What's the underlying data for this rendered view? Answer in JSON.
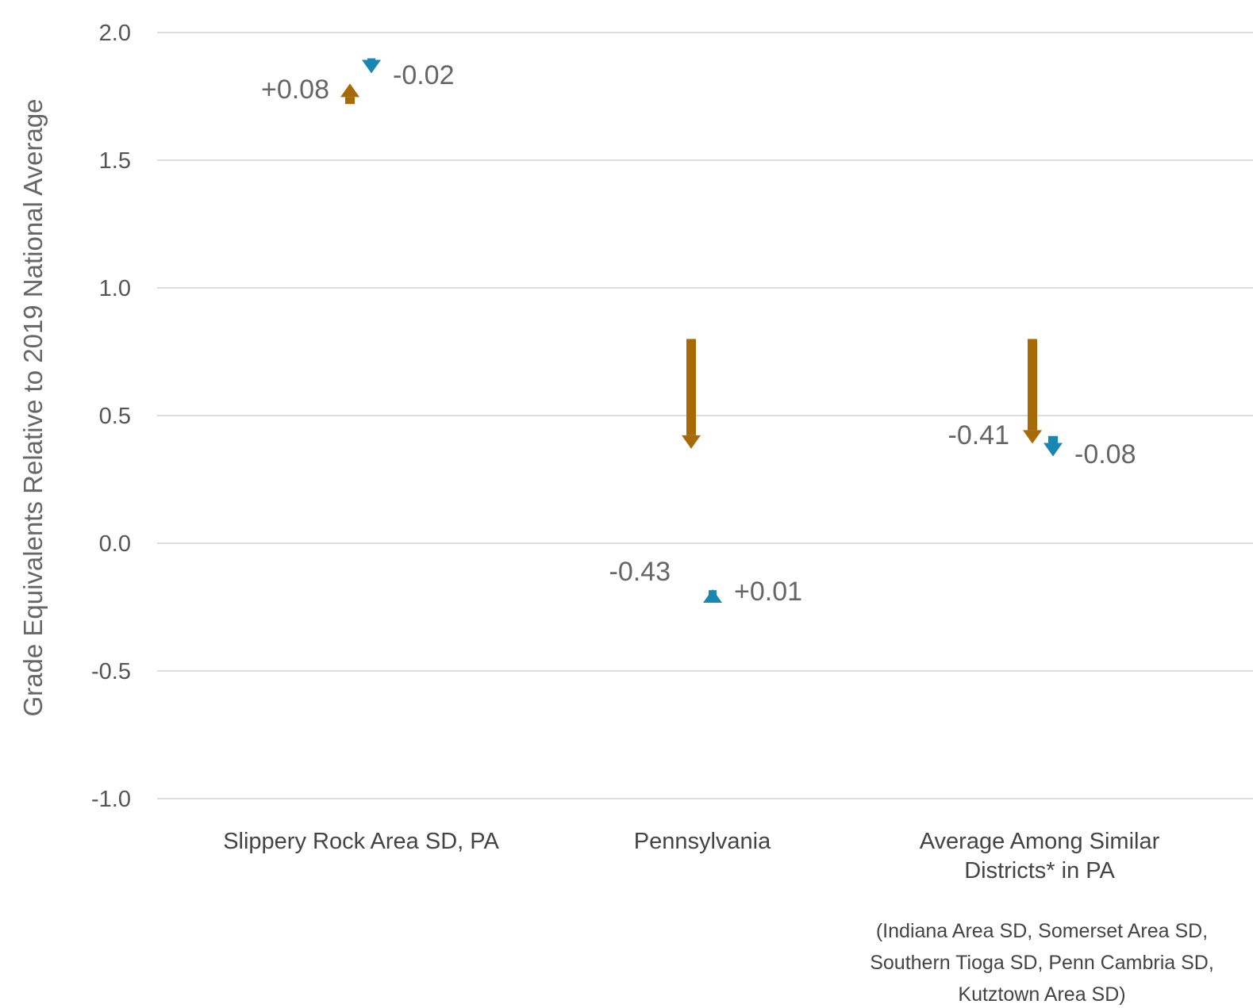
{
  "chart_data": {
    "type": "arrow",
    "ylabel": "Grade Equivalents Relative to 2019 National Average",
    "ylim": [
      -1.0,
      2.0
    ],
    "yticks": [
      2.0,
      1.5,
      1.0,
      0.5,
      0.0,
      -0.5,
      -1.0
    ],
    "ytick_labels": [
      "2.0",
      "1.5",
      "1.0",
      "0.5",
      "0.0",
      "-0.5",
      "-1.0"
    ],
    "grid": true,
    "categories": [
      {
        "label_lines": [
          "Slippery Rock Area SD, PA"
        ],
        "note_lines": []
      },
      {
        "label_lines": [
          "Pennsylvania"
        ],
        "note_lines": []
      },
      {
        "label_lines": [
          "Average Among Similar",
          "Districts* in PA"
        ],
        "note_lines": [
          "(Indiana Area SD, Somerset Area SD,",
          "Southern Tioga SD, Penn Cambria SD,",
          "Kutztown Area SD)"
        ]
      }
    ],
    "series": [
      {
        "color": "#A86A06",
        "points": [
          {
            "start": 1.72,
            "end": 1.8,
            "change_label": "+0.08"
          },
          {
            "start": 0.8,
            "end": 0.37,
            "change_label": "-0.43"
          },
          {
            "start": 0.8,
            "end": 0.39,
            "change_label": "-0.41"
          }
        ]
      },
      {
        "color": "#1A87B3",
        "points": [
          {
            "start": 1.86,
            "end": 1.84,
            "change_label": "-0.02"
          },
          {
            "start": -0.19,
            "end": -0.18,
            "change_label": "+0.01"
          },
          {
            "start": 0.42,
            "end": 0.34,
            "change_label": "-0.08"
          }
        ]
      }
    ]
  }
}
